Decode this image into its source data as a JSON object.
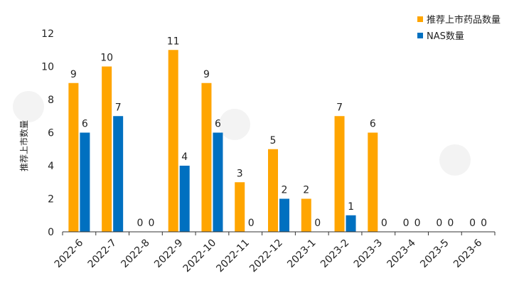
{
  "chart_data": {
    "type": "bar",
    "categories": [
      "2022-6",
      "2022-7",
      "2022-8",
      "2022-9",
      "2022-10",
      "2022-11",
      "2022-12",
      "2023-1",
      "2023-2",
      "2023-3",
      "2023-4",
      "2023-5",
      "2023-6"
    ],
    "series": [
      {
        "name": "推荐上市药品数量",
        "color": "#FFA500",
        "values": [
          9,
          10,
          0,
          11,
          9,
          3,
          5,
          2,
          7,
          6,
          0,
          0,
          0
        ]
      },
      {
        "name": "NAS数量",
        "color": "#0070C0",
        "values": [
          6,
          7,
          0,
          4,
          6,
          0,
          2,
          0,
          1,
          0,
          0,
          0,
          0
        ]
      }
    ],
    "ylabel": "推荐上市数量",
    "ylim": [
      0,
      12
    ],
    "yticks": [
      0,
      2,
      4,
      6,
      8,
      10,
      12
    ],
    "grid": false,
    "legend": "top-right",
    "data_labels": true
  }
}
